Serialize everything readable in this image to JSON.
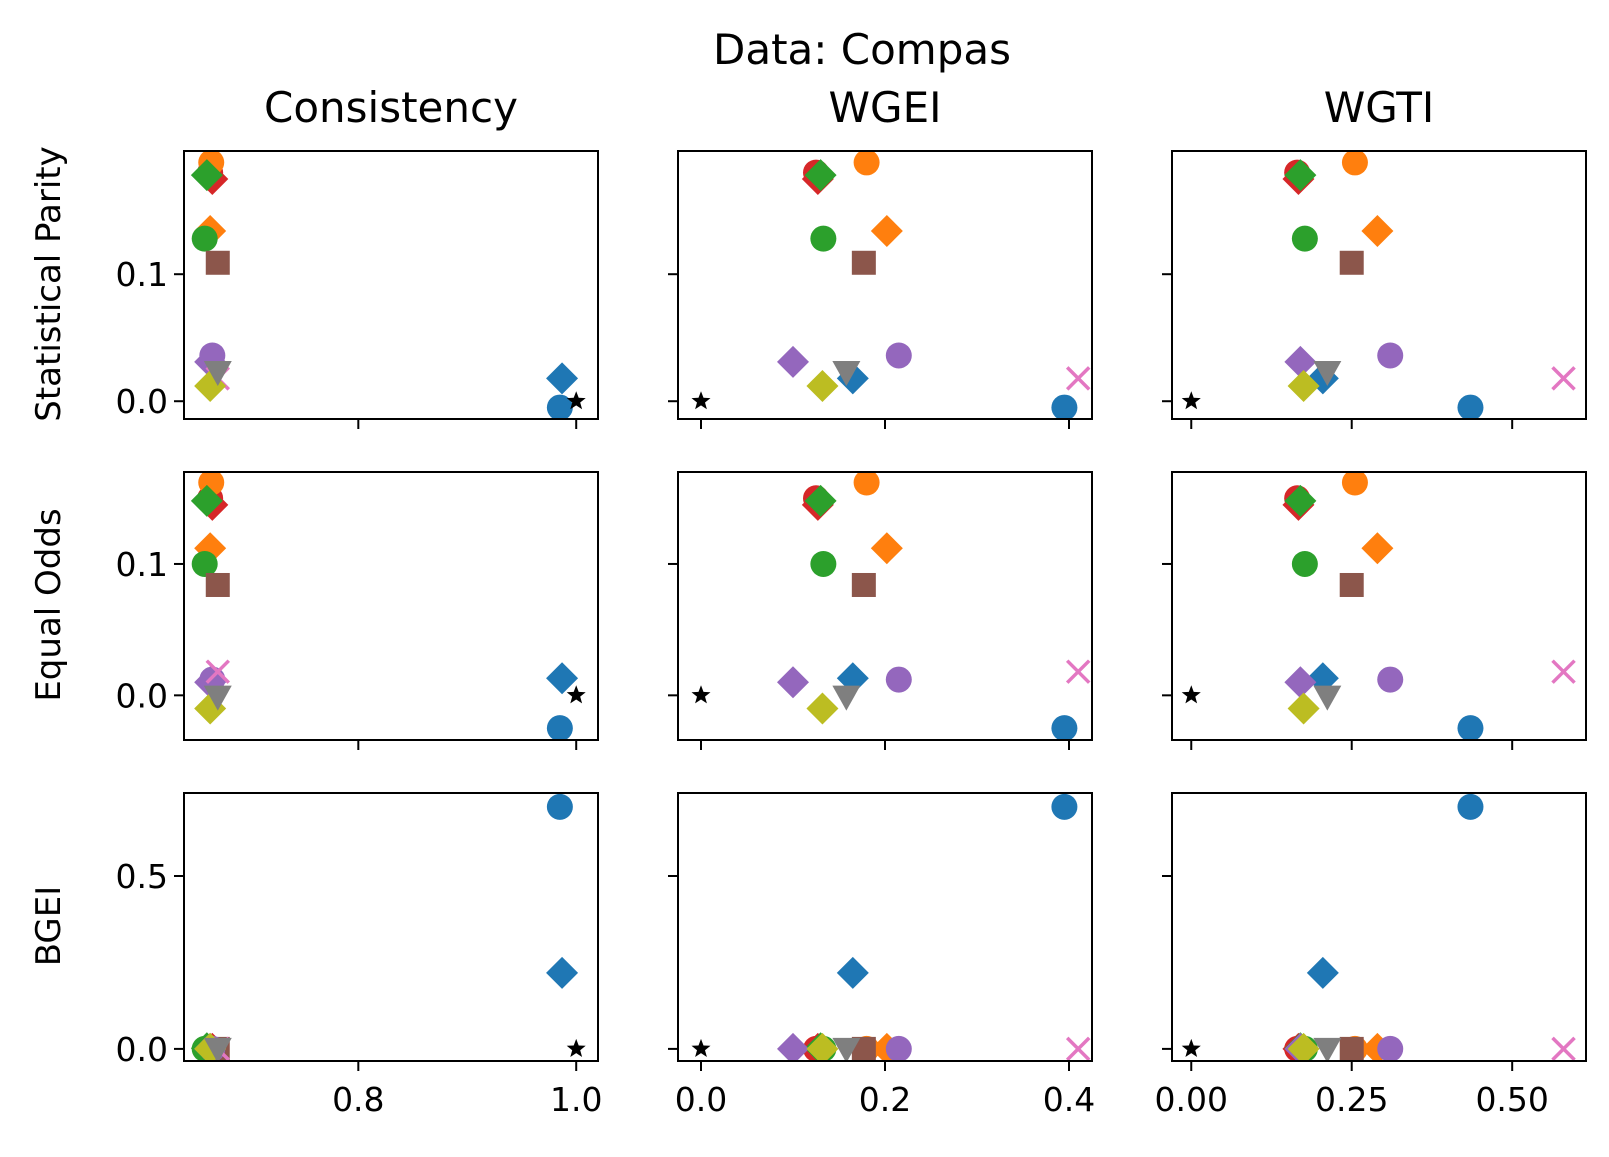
{
  "chart_data": {
    "type": "scatter",
    "title": "Data: Compas",
    "column_titles": [
      "Consistency",
      "WGEI",
      "WGTI"
    ],
    "row_labels": [
      "Statistical Parity",
      "Equal Odds",
      "BGEI"
    ],
    "columns": [
      {
        "xlim": [
          0.64,
          1.02
        ],
        "xticks": [
          0.8,
          1.0
        ],
        "xtick_labels": [
          "0.8",
          "1.0"
        ]
      },
      {
        "xlim": [
          -0.025,
          0.425
        ],
        "xticks": [
          0.0,
          0.2,
          0.4
        ],
        "xtick_labels": [
          "0.0",
          "0.2",
          "0.4"
        ]
      },
      {
        "xlim": [
          -0.03,
          0.615
        ],
        "xticks": [
          0.0,
          0.25,
          0.5
        ],
        "xtick_labels": [
          "0.00",
          "0.25",
          "0.50"
        ]
      }
    ],
    "rows": [
      {
        "ylim": [
          -0.014,
          0.197
        ],
        "yticks": [
          0.0,
          0.1
        ],
        "ytick_labels": [
          "0.0",
          "0.1"
        ]
      },
      {
        "ylim": [
          -0.034,
          0.17
        ],
        "yticks": [
          0.0,
          0.1
        ],
        "ytick_labels": [
          "0.0",
          "0.1"
        ]
      },
      {
        "ylim": [
          -0.035,
          0.74
        ],
        "yticks": [
          0.0,
          0.5
        ],
        "ytick_labels": [
          "0.0",
          "0.5"
        ]
      }
    ],
    "methods": [
      {
        "marker": "circle",
        "color": "#1f77b4",
        "x": [
          0.985,
          0.395,
          0.435
        ],
        "y": [
          -0.005,
          -0.025,
          0.7
        ]
      },
      {
        "marker": "diamond",
        "color": "#1f77b4",
        "x": [
          0.987,
          0.165,
          0.205
        ],
        "y": [
          0.018,
          0.013,
          0.22
        ]
      },
      {
        "marker": "star",
        "color": "#000000",
        "x": [
          1.0,
          0.0,
          0.0
        ],
        "y": [
          0.0,
          0.0,
          0.0
        ]
      },
      {
        "marker": "circle",
        "color": "#d62728",
        "x": [
          0.664,
          0.125,
          0.165
        ],
        "y": [
          0.18,
          0.15,
          0.0
        ]
      },
      {
        "marker": "diamond",
        "color": "#d62728",
        "x": [
          0.666,
          0.127,
          0.167
        ],
        "y": [
          0.175,
          0.145,
          0.0
        ]
      },
      {
        "marker": "circle",
        "color": "#ff7f0e",
        "x": [
          0.665,
          0.18,
          0.255
        ],
        "y": [
          0.188,
          0.162,
          0.0
        ]
      },
      {
        "marker": "diamond",
        "color": "#ff7f0e",
        "x": [
          0.664,
          0.202,
          0.29
        ],
        "y": [
          0.134,
          0.112,
          0.0
        ]
      },
      {
        "marker": "circle",
        "color": "#2ca02c",
        "x": [
          0.659,
          0.133,
          0.177
        ],
        "y": [
          0.128,
          0.1,
          0.0
        ]
      },
      {
        "marker": "diamond",
        "color": "#2ca02c",
        "x": [
          0.661,
          0.13,
          0.17
        ],
        "y": [
          0.178,
          0.148,
          0.002
        ]
      },
      {
        "marker": "square",
        "color": "#8c564b",
        "x": [
          0.671,
          0.177,
          0.25
        ],
        "y": [
          0.109,
          0.084,
          0.0
        ]
      },
      {
        "marker": "circle",
        "color": "#9467bd",
        "x": [
          0.666,
          0.215,
          0.31
        ],
        "y": [
          0.036,
          0.012,
          0.0
        ]
      },
      {
        "marker": "diamond",
        "color": "#9467bd",
        "x": [
          0.664,
          0.1,
          0.17
        ],
        "y": [
          0.031,
          0.01,
          0.0
        ]
      },
      {
        "marker": "x",
        "color": "#e377c2",
        "x": [
          0.671,
          0.41,
          0.58
        ],
        "y": [
          0.018,
          0.018,
          0.0
        ]
      },
      {
        "marker": "diamond",
        "color": "#bcbd22",
        "x": [
          0.664,
          0.132,
          0.175
        ],
        "y": [
          0.012,
          -0.01,
          0.0
        ]
      },
      {
        "marker": "triangle-down",
        "color": "#7f7f7f",
        "x": [
          0.671,
          0.158,
          0.212
        ],
        "y": [
          0.023,
          -0.001,
          0.0
        ]
      }
    ]
  }
}
